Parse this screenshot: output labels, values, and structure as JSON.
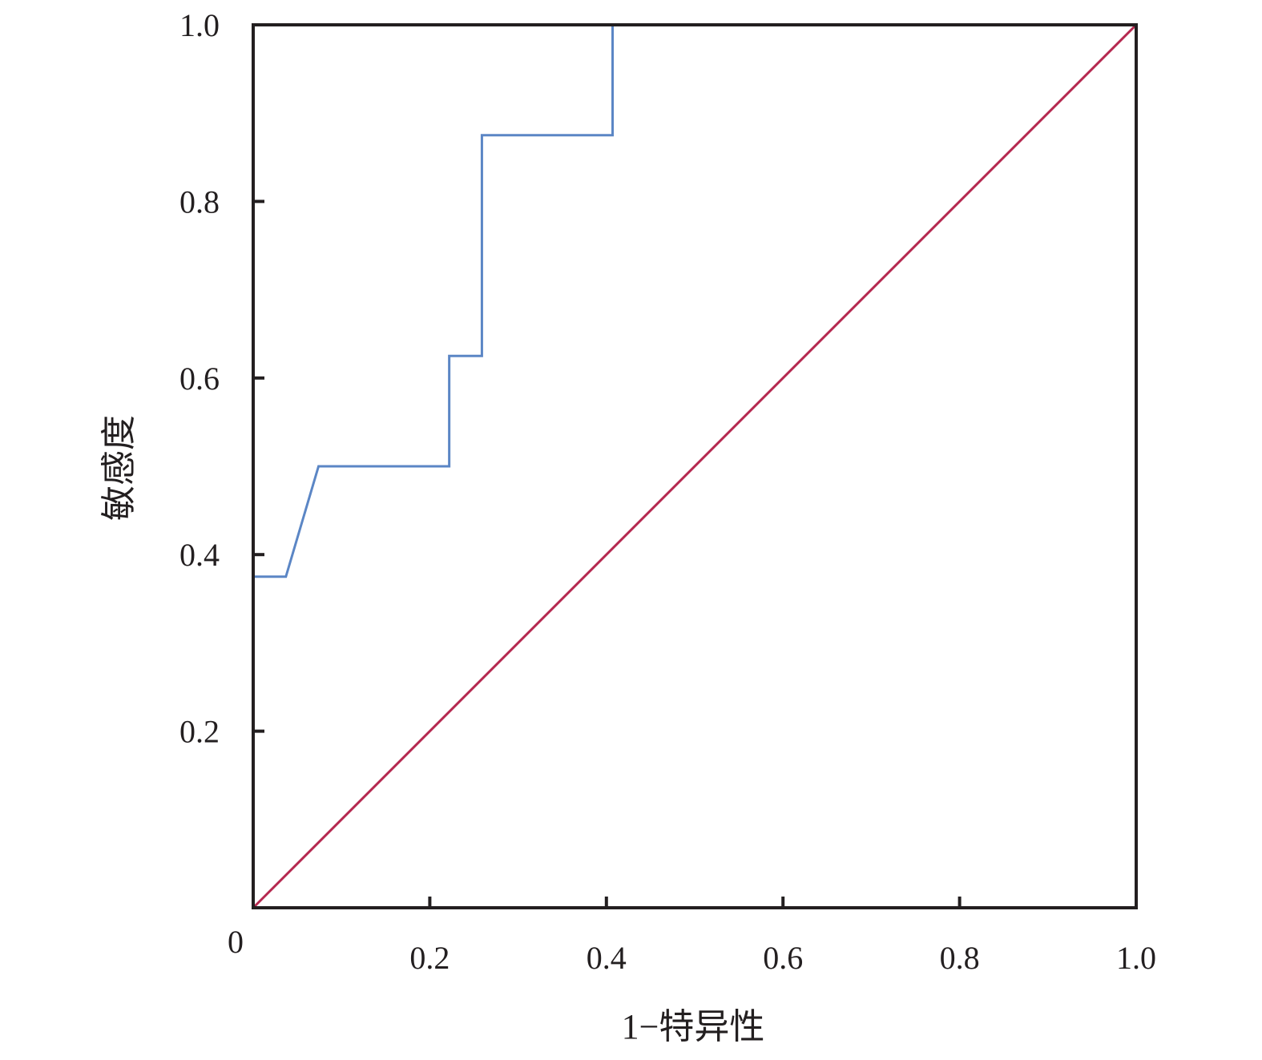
{
  "chart_data": {
    "type": "line",
    "title": "",
    "xlabel": "1−特异性",
    "ylabel": "敏感度",
    "xlim": [
      0,
      1
    ],
    "ylim": [
      0,
      1
    ],
    "x_ticks": [
      0,
      0.2,
      0.4,
      0.6,
      0.8,
      1.0
    ],
    "x_tick_labels": [
      "0",
      "0.2",
      "0.4",
      "0.6",
      "0.8",
      "1.0"
    ],
    "y_ticks": [
      0.2,
      0.4,
      0.6,
      0.8,
      1.0
    ],
    "y_tick_labels": [
      "0.2",
      "0.4",
      "0.6",
      "0.8",
      "1.0"
    ],
    "grid": false,
    "legend": "none",
    "series": [
      {
        "color": "#5b86c5",
        "x": [
          0,
          0,
          0.037,
          0.074,
          0.222,
          0.222,
          0.259,
          0.259,
          0.407,
          0.407,
          1.0
        ],
        "y": [
          0,
          0.375,
          0.375,
          0.5,
          0.5,
          0.625,
          0.625,
          0.875,
          0.875,
          1.0,
          1.0
        ]
      },
      {
        "color": "#b5284f",
        "x": [
          0,
          1
        ],
        "y": [
          0,
          1
        ]
      }
    ]
  }
}
